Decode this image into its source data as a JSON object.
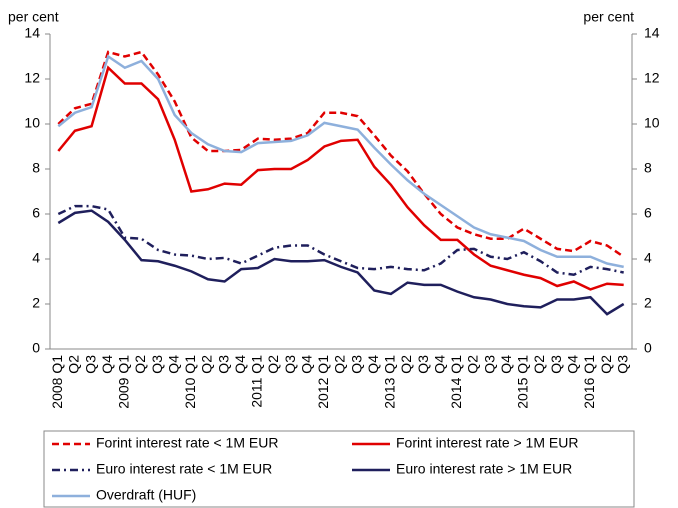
{
  "chart_data": {
    "type": "line",
    "y_label": "per cent",
    "y2_label": "per cent",
    "categories": [
      "2008 Q1",
      "Q2",
      "Q3",
      "Q4",
      "2009 Q1",
      "Q2",
      "Q3",
      "Q4",
      "2010 Q1",
      "Q2",
      "Q3",
      "Q4",
      "2011 Q1",
      "Q2",
      "Q3",
      "Q4",
      "2012 Q1",
      "Q2",
      "Q3",
      "Q4",
      "2013 Q1",
      "Q2",
      "Q3",
      "Q4",
      "2014 Q1",
      "Q2",
      "Q3",
      "Q4",
      "2015 Q1",
      "Q2",
      "Q3",
      "Q4",
      "2016 Q1",
      "Q2",
      "Q3"
    ],
    "ylim": [
      0,
      14
    ],
    "yticks": [
      0,
      2,
      4,
      6,
      8,
      10,
      12,
      14
    ],
    "y2lim": [
      0,
      14
    ],
    "y2ticks": [
      0,
      2,
      4,
      6,
      8,
      10,
      12,
      14
    ],
    "grid": false,
    "legend": "bottom",
    "series": [
      {
        "name": "Forint interest rate < 1M EUR",
        "color": "#e00000",
        "dash": "dashed",
        "values": [
          10.0,
          10.7,
          10.9,
          13.2,
          13.0,
          13.2,
          12.2,
          11.0,
          9.4,
          8.8,
          8.8,
          8.85,
          9.35,
          9.3,
          9.35,
          9.6,
          10.5,
          10.5,
          10.35,
          9.5,
          8.6,
          7.9,
          6.9,
          6.0,
          5.4,
          5.1,
          4.9,
          4.9,
          5.35,
          4.9,
          4.45,
          4.35,
          4.8,
          4.6,
          4.1
        ]
      },
      {
        "name": "Forint interest rate > 1M EUR",
        "color": "#e00000",
        "dash": "solid",
        "values": [
          8.8,
          9.7,
          9.9,
          12.5,
          11.8,
          11.8,
          11.1,
          9.3,
          7.0,
          7.1,
          7.35,
          7.3,
          7.95,
          8.0,
          8.0,
          8.4,
          9.0,
          9.25,
          9.3,
          8.1,
          7.3,
          6.3,
          5.5,
          4.85,
          4.85,
          4.2,
          3.7,
          3.5,
          3.3,
          3.15,
          2.8,
          3.0,
          2.65,
          2.9,
          2.85
        ]
      },
      {
        "name": "Euro interest rate < 1M EUR",
        "color": "#1f1f5c",
        "dash": "dashdot",
        "values": [
          6.0,
          6.35,
          6.35,
          6.2,
          4.95,
          4.9,
          4.4,
          4.2,
          4.15,
          4.0,
          4.05,
          3.8,
          4.15,
          4.5,
          4.6,
          4.6,
          4.2,
          3.9,
          3.6,
          3.55,
          3.65,
          3.55,
          3.5,
          3.8,
          4.4,
          4.45,
          4.1,
          4.0,
          4.3,
          3.9,
          3.4,
          3.3,
          3.65,
          3.55,
          3.4
        ]
      },
      {
        "name": "Euro interest rate > 1M EUR",
        "color": "#1f1f5c",
        "dash": "solid",
        "values": [
          5.6,
          6.05,
          6.15,
          5.65,
          4.85,
          3.95,
          3.9,
          3.7,
          3.45,
          3.1,
          3.0,
          3.55,
          3.6,
          4.0,
          3.9,
          3.9,
          3.95,
          3.65,
          3.4,
          2.6,
          2.45,
          2.95,
          2.85,
          2.85,
          2.55,
          2.3,
          2.2,
          2.0,
          1.9,
          1.85,
          2.2,
          2.2,
          2.3,
          1.55,
          2.0
        ]
      },
      {
        "name": "Overdraft (HUF)",
        "color": "#8eb0dc",
        "dash": "solid",
        "values": [
          9.9,
          10.5,
          10.75,
          13.0,
          12.5,
          12.8,
          12.0,
          10.4,
          9.6,
          9.1,
          8.8,
          8.75,
          9.15,
          9.2,
          9.25,
          9.5,
          10.05,
          9.9,
          9.75,
          8.95,
          8.2,
          7.5,
          6.9,
          6.4,
          5.9,
          5.4,
          5.1,
          4.95,
          4.8,
          4.4,
          4.1,
          4.1,
          4.1,
          3.8,
          3.65
        ]
      }
    ]
  }
}
